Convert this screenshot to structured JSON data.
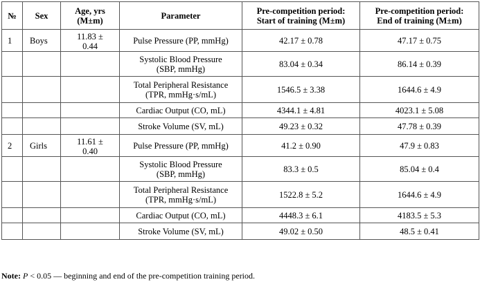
{
  "headers": {
    "num": "№",
    "sex": "Sex",
    "age_line1": "Age, yrs",
    "age_line2": "(M±m)",
    "parameter": "Parameter",
    "start_line1": "Pre-competition period:",
    "start_line2": "Start of training (M±m)",
    "end_line1": "Pre-competition period:",
    "end_line2": "End of training (M±m)"
  },
  "groups": [
    {
      "num": "1",
      "sex": "Boys",
      "age_line1": "11.83 ±",
      "age_line2": "0.44",
      "rows": [
        {
          "param_line1": "Pulse Pressure (PP, mmHg)",
          "param_line2": "",
          "start": "42.17 ± 0.78",
          "end": "47.17 ± 0.75"
        },
        {
          "param_line1": "Systolic Blood Pressure",
          "param_line2": "(SBP, mmHg)",
          "start": "83.04 ± 0.34",
          "end": "86.14 ± 0.39"
        },
        {
          "param_line1": "Total Peripheral Resistance",
          "param_line2": "(TPR, mmHg·s/mL)",
          "start": "1546.5 ± 3.38",
          "end": "1644.6 ± 4.9"
        },
        {
          "param_line1": "Cardiac Output (CO, mL)",
          "param_line2": "",
          "start": "4344.1 ± 4.81",
          "end": "4023.1 ± 5.08"
        },
        {
          "param_line1": "Stroke Volume (SV, mL)",
          "param_line2": "",
          "start": "49.23 ± 0.32",
          "end": "47.78 ± 0.39"
        }
      ]
    },
    {
      "num": "2",
      "sex": "Girls",
      "age_line1": "11.61 ±",
      "age_line2": "0.40",
      "rows": [
        {
          "param_line1": "Pulse Pressure (PP, mmHg)",
          "param_line2": "",
          "start": "41.2 ± 0.90",
          "end": "47.9 ± 0.83"
        },
        {
          "param_line1": "Systolic Blood Pressure",
          "param_line2": "(SBP, mmHg)",
          "start": "83.3 ± 0.5",
          "end": "85.04 ± 0.4"
        },
        {
          "param_line1": "Total Peripheral Resistance",
          "param_line2": "(TPR, mmHg·s/mL)",
          "start": "1522.8 ± 5.2",
          "end": "1644.6 ± 4.9"
        },
        {
          "param_line1": "Cardiac Output (CO, mL)",
          "param_line2": "",
          "start": "4448.3 ± 6.1",
          "end": "4183.5 ± 5.3"
        },
        {
          "param_line1": "Stroke Volume (SV, mL)",
          "param_line2": "",
          "start": "49.02 ± 0.50",
          "end": "48.5 ± 0.41"
        }
      ]
    }
  ],
  "note": {
    "label": "Note:",
    "p": "P",
    "text": " < 0.05 — beginning and end of the pre-competition training period."
  }
}
